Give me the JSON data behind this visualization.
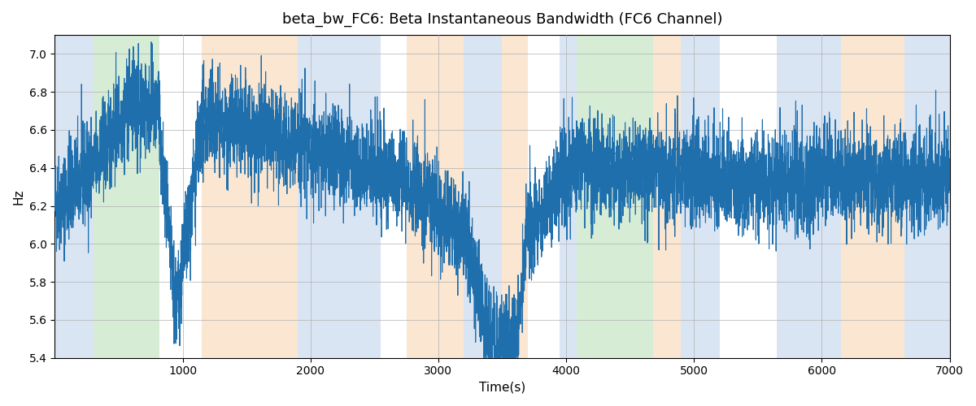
{
  "title": "beta_bw_FC6: Beta Instantaneous Bandwidth (FC6 Channel)",
  "xlabel": "Time(s)",
  "ylabel": "Hz",
  "xlim": [
    0,
    7000
  ],
  "ylim": [
    5.4,
    7.1
  ],
  "line_color": "#1f6fad",
  "line_width": 0.8,
  "background_color": "#ffffff",
  "grid_color": "#b0b0b0",
  "regions": [
    {
      "start": 0,
      "end": 300,
      "color": "#aec6e8",
      "alpha": 0.45
    },
    {
      "start": 300,
      "end": 820,
      "color": "#a8d5a2",
      "alpha": 0.45
    },
    {
      "start": 1150,
      "end": 1900,
      "color": "#f5c99a",
      "alpha": 0.45
    },
    {
      "start": 1900,
      "end": 2550,
      "color": "#aec6e8",
      "alpha": 0.45
    },
    {
      "start": 2550,
      "end": 2750,
      "color": "#ffffff",
      "alpha": 0.0
    },
    {
      "start": 2750,
      "end": 3200,
      "color": "#f5c99a",
      "alpha": 0.45
    },
    {
      "start": 3200,
      "end": 3500,
      "color": "#aec6e8",
      "alpha": 0.45
    },
    {
      "start": 3500,
      "end": 3700,
      "color": "#f5c99a",
      "alpha": 0.45
    },
    {
      "start": 3950,
      "end": 4080,
      "color": "#aec6e8",
      "alpha": 0.45
    },
    {
      "start": 4080,
      "end": 4680,
      "color": "#a8d5a2",
      "alpha": 0.45
    },
    {
      "start": 4680,
      "end": 4900,
      "color": "#f5c99a",
      "alpha": 0.45
    },
    {
      "start": 4900,
      "end": 5200,
      "color": "#aec6e8",
      "alpha": 0.45
    },
    {
      "start": 5650,
      "end": 6150,
      "color": "#aec6e8",
      "alpha": 0.45
    },
    {
      "start": 6150,
      "end": 6650,
      "color": "#f5c99a",
      "alpha": 0.45
    },
    {
      "start": 6650,
      "end": 7000,
      "color": "#aec6e8",
      "alpha": 0.45
    }
  ],
  "seed": 42,
  "n_points": 7000,
  "t_start": 0,
  "t_end": 7000
}
